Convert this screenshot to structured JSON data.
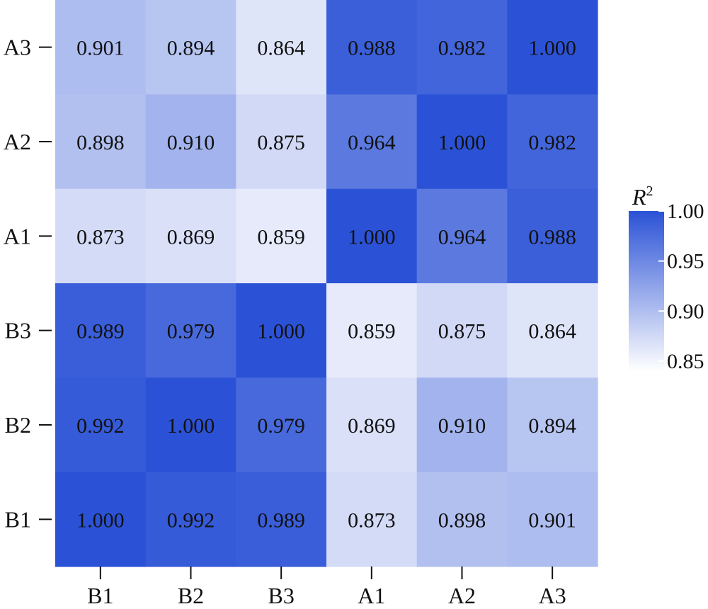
{
  "chart_data": {
    "type": "heatmap",
    "title": "",
    "xlabel": "",
    "ylabel": "",
    "x_categories": [
      "B1",
      "B2",
      "B3",
      "A1",
      "A2",
      "A3"
    ],
    "y_categories": [
      "A3",
      "A2",
      "A1",
      "B3",
      "B2",
      "B1"
    ],
    "values": [
      [
        0.901,
        0.894,
        0.864,
        0.988,
        0.982,
        1.0
      ],
      [
        0.898,
        0.91,
        0.875,
        0.964,
        1.0,
        0.982
      ],
      [
        0.873,
        0.869,
        0.859,
        1.0,
        0.964,
        0.988
      ],
      [
        0.989,
        0.979,
        1.0,
        0.859,
        0.875,
        0.864
      ],
      [
        0.992,
        1.0,
        0.979,
        0.869,
        0.91,
        0.894
      ],
      [
        1.0,
        0.992,
        0.989,
        0.873,
        0.898,
        0.901
      ]
    ],
    "value_labels": [
      [
        "0.901",
        "0.894",
        "0.864",
        "0.988",
        "0.982",
        "1.000"
      ],
      [
        "0.898",
        "0.910",
        "0.875",
        "0.964",
        "1.000",
        "0.982"
      ],
      [
        "0.873",
        "0.869",
        "0.859",
        "1.000",
        "0.964",
        "0.988"
      ],
      [
        "0.989",
        "0.979",
        "1.000",
        "0.859",
        "0.875",
        "0.864"
      ],
      [
        "0.992",
        "1.000",
        "0.979",
        "0.869",
        "0.910",
        "0.894"
      ],
      [
        "1.000",
        "0.992",
        "0.989",
        "0.873",
        "0.898",
        "0.901"
      ]
    ],
    "colorbar": {
      "title_base": "R",
      "title_sup": "2",
      "range": [
        0.84,
        1.0
      ],
      "ticks": [
        1.0,
        0.95,
        0.9,
        0.85
      ],
      "tick_labels": [
        "1.00",
        "0.95",
        "0.90",
        "0.85"
      ],
      "color_low": "#ffffff",
      "color_high": "#2b52d6",
      "placement": "right"
    },
    "grid": false
  }
}
